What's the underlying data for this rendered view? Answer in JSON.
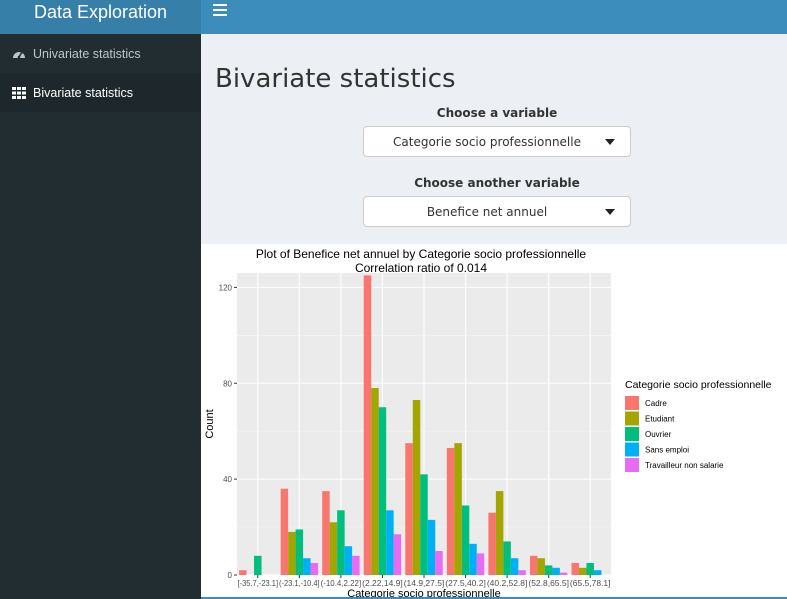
{
  "app": {
    "brand": "Data Exploration"
  },
  "sidebar": {
    "items": [
      {
        "label": "Univariate statistics",
        "icon": "dashboard-icon",
        "active": false
      },
      {
        "label": "Bivariate statistics",
        "icon": "grid-icon",
        "active": true
      }
    ]
  },
  "main": {
    "title": "Bivariate statistics",
    "var1": {
      "label": "Choose a variable",
      "value": "Categorie socio professionnelle"
    },
    "var2": {
      "label": "Choose another variable",
      "value": "Benefice net annuel"
    }
  },
  "chart_data": {
    "type": "bar",
    "title": "Plot of Benefice net annuel by Categorie socio professionnelle",
    "subtitle": "Correlation ratio of 0.014",
    "xlabel": "Categorie socio professionnelle",
    "ylabel": "Count",
    "ylim": [
      0,
      126
    ],
    "yticks": [
      0,
      40,
      80,
      120
    ],
    "grid": true,
    "legend": {
      "title": "Categorie socio professionnelle",
      "placement": "right"
    },
    "categories": [
      "[-35.7,-23.1]",
      "(-23.1,-10.4]",
      "(-10.4,2.22]",
      "(2.22,14.9]",
      "(14.9,27.5]",
      "(27.5,40.2]",
      "(40.2,52.8]",
      "(52.8,65.5]",
      "(65.5,78.1]"
    ],
    "series": [
      {
        "name": "Cadre",
        "color": "#f8766d",
        "values": [
          2,
          36,
          35,
          125,
          55,
          53,
          26,
          8,
          5
        ]
      },
      {
        "name": "Etudiant",
        "color": "#a3a500",
        "values": [
          0,
          18,
          22,
          78,
          73,
          55,
          35,
          7,
          3
        ]
      },
      {
        "name": "Ouvrier",
        "color": "#00bf7d",
        "values": [
          8,
          19,
          27,
          70,
          42,
          29,
          14,
          4,
          5
        ]
      },
      {
        "name": "Sans emploi",
        "color": "#00b0f6",
        "values": [
          0,
          7,
          12,
          27,
          23,
          13,
          7,
          3,
          2
        ]
      },
      {
        "name": "Travailleur non salarie",
        "color": "#e76bf3",
        "values": [
          0,
          5,
          8,
          17,
          10,
          9,
          2,
          1,
          0
        ]
      }
    ]
  }
}
